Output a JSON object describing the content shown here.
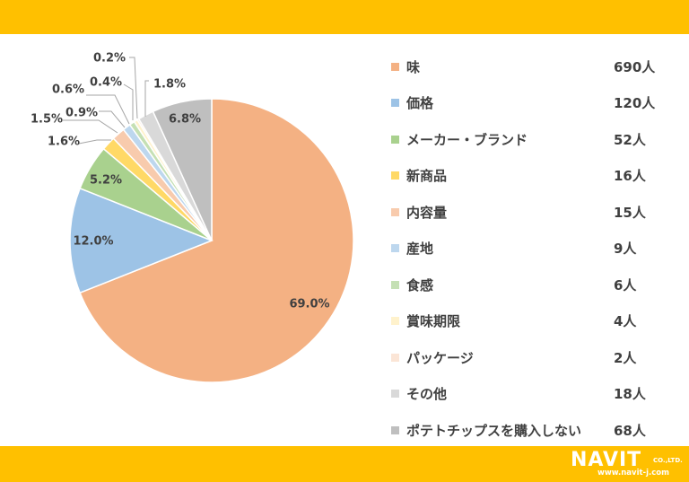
{
  "chart_data": {
    "type": "pie",
    "slices": [
      {
        "label": "味",
        "value": 690,
        "percent_label": "69.0%",
        "count_label": "690人",
        "color": "#F4B183"
      },
      {
        "label": "価格",
        "value": 120,
        "percent_label": "12.0%",
        "count_label": "120人",
        "color": "#9DC3E6"
      },
      {
        "label": "メーカー・ブランド",
        "value": 52,
        "percent_label": "5.2%",
        "count_label": "52人",
        "color": "#A9D18E"
      },
      {
        "label": "新商品",
        "value": 16,
        "percent_label": "1.6%",
        "count_label": "16人",
        "color": "#FFD966"
      },
      {
        "label": "内容量",
        "value": 15,
        "percent_label": "1.5%",
        "count_label": "15人",
        "color": "#F8CBAD"
      },
      {
        "label": "産地",
        "value": 9,
        "percent_label": "0.9%",
        "count_label": "9人",
        "color": "#BDD7EE"
      },
      {
        "label": "食感",
        "value": 6,
        "percent_label": "0.6%",
        "count_label": "6人",
        "color": "#C5E0B4"
      },
      {
        "label": "賞味期限",
        "value": 4,
        "percent_label": "0.4%",
        "count_label": "4人",
        "color": "#FFF2CC"
      },
      {
        "label": "パッケージ",
        "value": 2,
        "percent_label": "0.2%",
        "count_label": "2人",
        "color": "#FBE5D6"
      },
      {
        "label": "その他",
        "value": 18,
        "percent_label": "1.8%",
        "count_label": "18人",
        "color": "#D9D9D9"
      },
      {
        "label": "ポテトチップスを購入しない",
        "value": 68,
        "percent_label": "6.8%",
        "count_label": "68人",
        "color": "#BFBFBF"
      }
    ],
    "legend_position": "right"
  },
  "logo": {
    "name": "NAVIT",
    "suffix": "CO.,LTD.",
    "url": "www.navit-j.com"
  }
}
